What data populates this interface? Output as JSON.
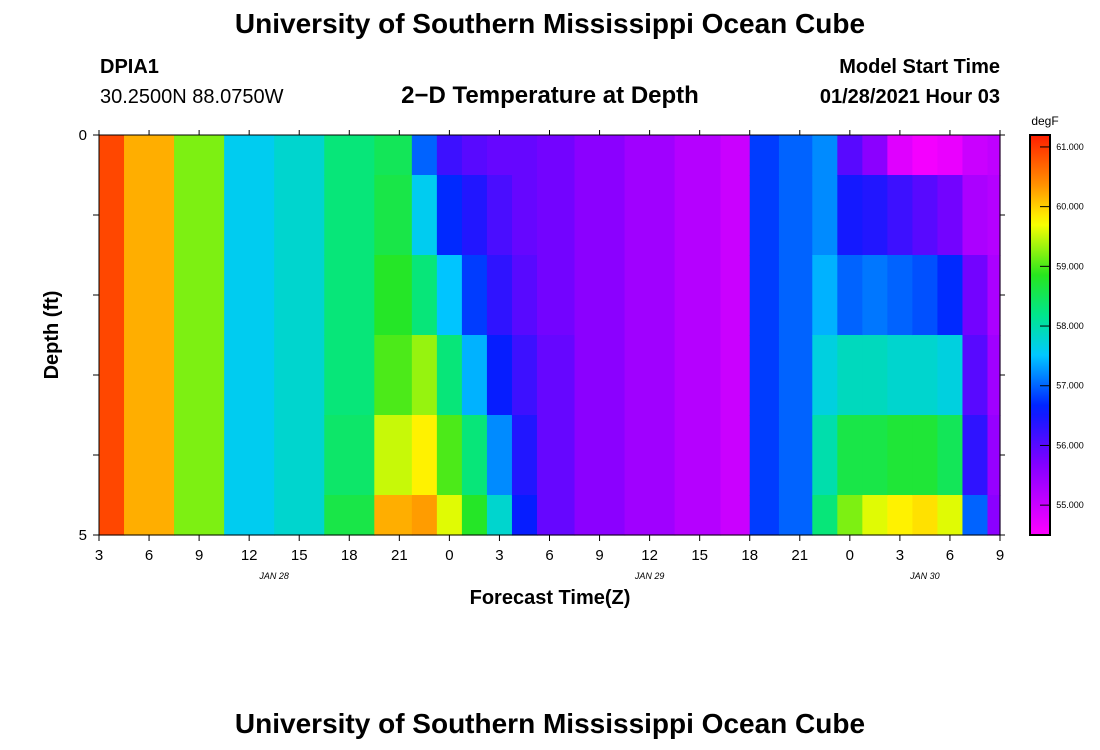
{
  "page": {
    "title_top": "University of Southern Mississippi Ocean Cube",
    "title_bottom": "University of Southern Mississippi Ocean Cube",
    "station_id": "DPIA1",
    "station_coords": "30.2500N 88.0750W",
    "plot_title": "2−D Temperature at Depth",
    "model_start_label": "Model Start Time",
    "model_start_value": "01/28/2021 Hour 03"
  },
  "chart_data": {
    "type": "heatmap",
    "title": "2−D Temperature at Depth",
    "xlabel": "Forecast Time(Z)",
    "ylabel": "Depth (ft)",
    "units": "degF",
    "x_range_hours": [
      0,
      54
    ],
    "y_range_ft": [
      0,
      5
    ],
    "x_ticks": [
      {
        "h": 0,
        "label": "3"
      },
      {
        "h": 3,
        "label": "6"
      },
      {
        "h": 6,
        "label": "9"
      },
      {
        "h": 9,
        "label": "12"
      },
      {
        "h": 12,
        "label": "15"
      },
      {
        "h": 15,
        "label": "18"
      },
      {
        "h": 18,
        "label": "21"
      },
      {
        "h": 21,
        "label": "0"
      },
      {
        "h": 24,
        "label": "3"
      },
      {
        "h": 27,
        "label": "6"
      },
      {
        "h": 30,
        "label": "9"
      },
      {
        "h": 33,
        "label": "12"
      },
      {
        "h": 36,
        "label": "15"
      },
      {
        "h": 39,
        "label": "18"
      },
      {
        "h": 42,
        "label": "21"
      },
      {
        "h": 45,
        "label": "0"
      },
      {
        "h": 48,
        "label": "3"
      },
      {
        "h": 51,
        "label": "6"
      },
      {
        "h": 54,
        "label": "9"
      }
    ],
    "date_labels": [
      {
        "h": 10.5,
        "label": "JAN 28"
      },
      {
        "h": 33,
        "label": "JAN 29"
      },
      {
        "h": 49.5,
        "label": "JAN 30"
      }
    ],
    "y_tick_labels": [
      {
        "ft": 0,
        "label": "0"
      },
      {
        "ft": 5,
        "label": "5"
      }
    ],
    "colorbar": {
      "label": "degF",
      "min": 54.5,
      "max": 61.2,
      "ticks": [
        "55.000",
        "56.000",
        "57.000",
        "58.000",
        "59.000",
        "60.000",
        "61.000"
      ]
    },
    "depth_bins_ft": [
      0,
      0.5,
      1.5,
      2.5,
      3.5,
      4.5
    ],
    "times_hours": [
      0,
      3,
      6,
      9,
      12,
      15,
      18,
      19.5,
      21,
      22.5,
      24,
      25.5,
      27,
      30,
      33,
      36,
      38.5,
      39.5,
      42,
      43.5,
      45,
      46.5,
      48,
      49.5,
      51,
      52.5,
      54
    ],
    "temperature_degF": [
      [
        60.9,
        60.9,
        60.9,
        60.9,
        60.9,
        60.9
      ],
      [
        60.2,
        60.2,
        60.2,
        60.2,
        60.2,
        60.2
      ],
      [
        59.2,
        59.2,
        59.2,
        59.2,
        59.2,
        59.2
      ],
      [
        57.6,
        57.6,
        57.6,
        57.6,
        57.6,
        57.6
      ],
      [
        57.8,
        57.8,
        57.8,
        57.8,
        57.8,
        57.8
      ],
      [
        58.3,
        58.3,
        58.3,
        58.3,
        58.4,
        58.6
      ],
      [
        58.5,
        58.6,
        58.8,
        59.0,
        59.5,
        60.2
      ],
      [
        57.0,
        57.6,
        58.3,
        59.3,
        59.8,
        60.3
      ],
      [
        56.2,
        56.7,
        57.5,
        58.3,
        59.0,
        59.6
      ],
      [
        56.0,
        56.4,
        56.8,
        57.4,
        58.3,
        58.8
      ],
      [
        55.9,
        56.1,
        56.3,
        56.6,
        57.2,
        57.8
      ],
      [
        55.9,
        55.9,
        56.0,
        56.2,
        56.4,
        56.6
      ],
      [
        55.8,
        55.8,
        55.8,
        55.9,
        55.9,
        55.9
      ],
      [
        55.6,
        55.6,
        55.6,
        55.6,
        55.6,
        55.6
      ],
      [
        55.4,
        55.4,
        55.4,
        55.4,
        55.4,
        55.4
      ],
      [
        55.2,
        55.2,
        55.2,
        55.2,
        55.2,
        55.2
      ],
      [
        55.0,
        55.0,
        55.0,
        55.0,
        55.0,
        55.0
      ],
      [
        56.8,
        56.8,
        56.8,
        56.8,
        56.8,
        56.8
      ],
      [
        57.0,
        57.0,
        57.0,
        57.0,
        57.0,
        57.0
      ],
      [
        57.2,
        57.2,
        57.4,
        57.7,
        58.0,
        58.3
      ],
      [
        56.0,
        56.5,
        57.0,
        57.9,
        58.6,
        59.2
      ],
      [
        55.6,
        56.4,
        57.1,
        57.9,
        58.6,
        59.6
      ],
      [
        54.8,
        56.2,
        57.0,
        57.8,
        58.7,
        59.8
      ],
      [
        54.6,
        56.0,
        56.9,
        57.8,
        58.7,
        59.9
      ],
      [
        54.7,
        55.8,
        56.7,
        57.7,
        58.5,
        59.6
      ],
      [
        55.0,
        55.3,
        55.8,
        56.0,
        56.3,
        57.0
      ],
      [
        55.1,
        55.2,
        55.3,
        55.4,
        55.5,
        55.6
      ]
    ]
  }
}
